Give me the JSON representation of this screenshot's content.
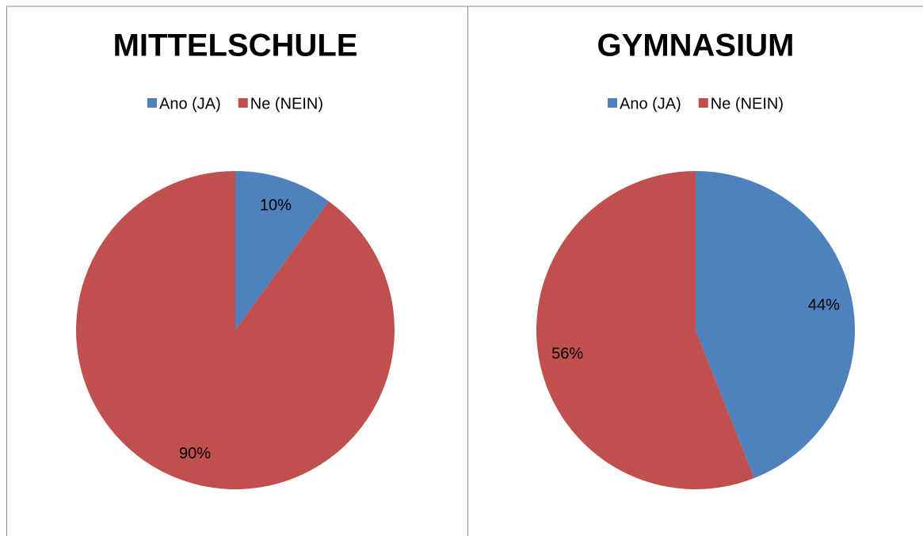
{
  "chart_data": [
    {
      "type": "pie",
      "title": "MITTELSCHULE",
      "categories": [
        "Ano (JA)",
        "Ne (NEIN)"
      ],
      "values": [
        10,
        90
      ],
      "value_labels": [
        "10%",
        "90%"
      ],
      "colors": [
        "#4f81bd",
        "#c0504d"
      ],
      "legend": "top"
    },
    {
      "type": "pie",
      "title": "GYMNASIUM",
      "categories": [
        "Ano (JA)",
        "Ne (NEIN)"
      ],
      "values": [
        44,
        56
      ],
      "value_labels": [
        "44%",
        "56%"
      ],
      "colors": [
        "#4f81bd",
        "#c0504d"
      ],
      "legend": "top"
    }
  ]
}
